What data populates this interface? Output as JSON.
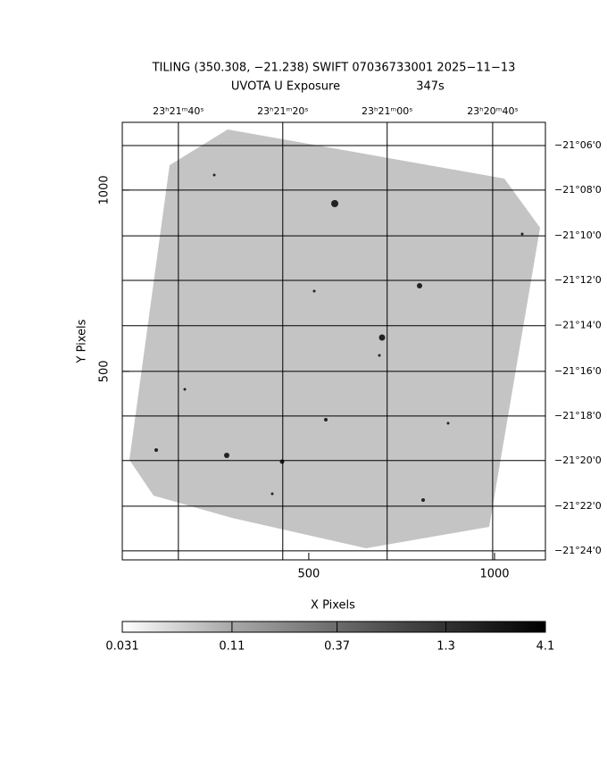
{
  "chart_data": {
    "type": "image",
    "title": "TILING (350.308, −21.238) SWIFT 07036733001 2025−11−13",
    "subtitle": "UVOTA U Exposure",
    "exposure": "347s",
    "xlabel": "X Pixels",
    "ylabel": "Y Pixels",
    "xlim": [
      -2,
      1137
    ],
    "ylim": [
      -20,
      1187
    ],
    "xticks": [
      500,
      1000
    ],
    "yticks": [
      500,
      1000
    ],
    "top_ticks": [
      {
        "value": 149,
        "label": "23ʰ21ᵐ40ˢ"
      },
      {
        "value": 430,
        "label": "23ʰ21ᵐ20ˢ"
      },
      {
        "value": 711,
        "label": "23ʰ21ᵐ00ˢ"
      },
      {
        "value": 995,
        "label": "23ʰ20ᵐ40ˢ"
      }
    ],
    "right_ticks": [
      {
        "value": 1123,
        "label": "−21°06'0"
      },
      {
        "value": 1000,
        "label": "−21°08'0"
      },
      {
        "value": 874,
        "label": "−21°10'0"
      },
      {
        "value": 751,
        "label": "−21°12'0"
      },
      {
        "value": 626,
        "label": "−21°14'0"
      },
      {
        "value": 500,
        "label": "−21°16'0"
      },
      {
        "value": 377,
        "label": "−21°18'0"
      },
      {
        "value": 254,
        "label": "−21°20'0"
      },
      {
        "value": 128,
        "label": "−21°22'0"
      },
      {
        "value": 5,
        "label": "−21°24'0"
      }
    ],
    "colorbar": {
      "log": true,
      "lim": [
        0.031,
        4.1
      ],
      "ticks": [
        0.031,
        0.11,
        0.37,
        1.3,
        4.1
      ]
    }
  }
}
